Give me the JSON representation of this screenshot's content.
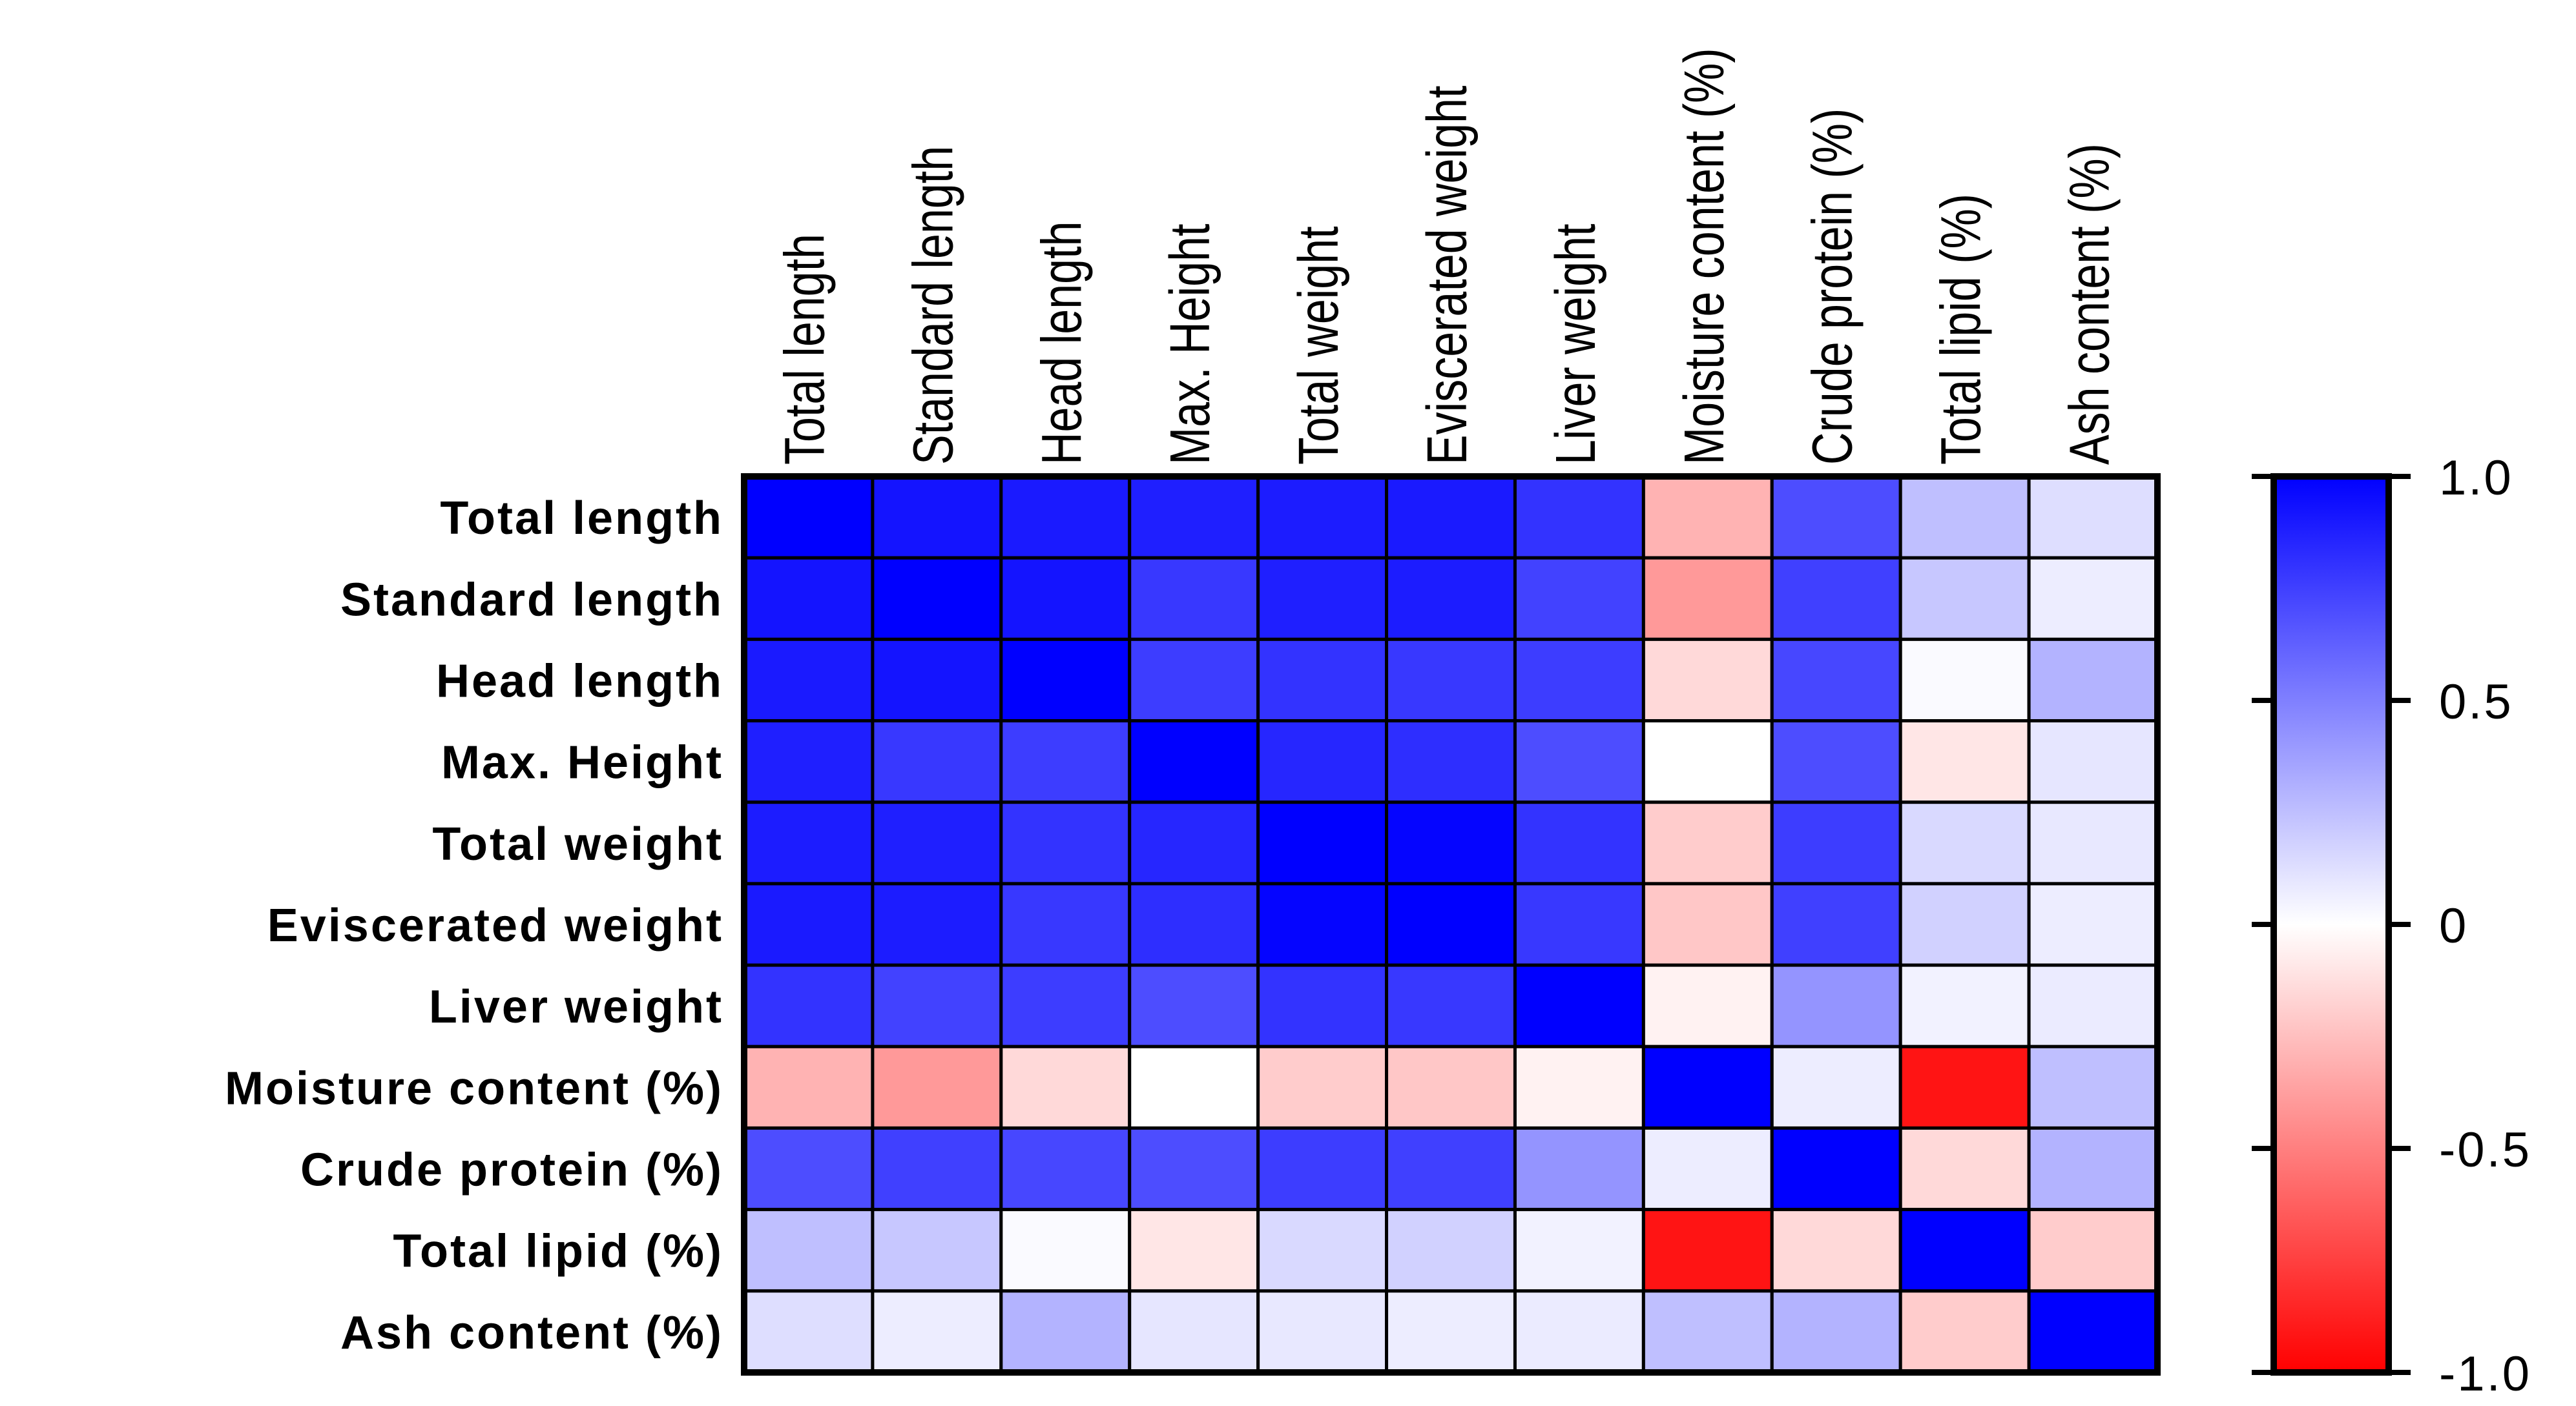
{
  "chart_data": {
    "type": "heatmap",
    "title": "",
    "row_labels": [
      "Total length",
      "Standard length",
      "Head length",
      "Max. Height",
      "Total weight",
      "Eviscerated weight",
      "Liver weight",
      "Moisture content (%)",
      "Crude protein (%)",
      "Total lipid (%)",
      "Ash content (%)"
    ],
    "column_labels": [
      "Total length",
      "Standard length",
      "Head length",
      "Max. Height",
      "Total weight",
      "Eviscerated weight",
      "Liver weight",
      "Moisture content (%)",
      "Crude protein (%)",
      "Total lipid (%)",
      "Ash content (%)"
    ],
    "values": [
      [
        1.0,
        0.92,
        0.9,
        0.88,
        0.89,
        0.9,
        0.8,
        -0.3,
        0.7,
        0.25,
        0.13
      ],
      [
        0.92,
        1.0,
        0.92,
        0.78,
        0.88,
        0.89,
        0.74,
        -0.4,
        0.75,
        0.22,
        0.07
      ],
      [
        0.9,
        0.92,
        1.0,
        0.76,
        0.8,
        0.78,
        0.76,
        -0.15,
        0.72,
        0.02,
        0.3
      ],
      [
        0.88,
        0.78,
        0.76,
        1.0,
        0.85,
        0.82,
        0.7,
        0.0,
        0.7,
        -0.1,
        0.1
      ],
      [
        0.89,
        0.88,
        0.8,
        0.85,
        1.0,
        0.98,
        0.8,
        -0.2,
        0.76,
        0.15,
        0.09
      ],
      [
        0.9,
        0.89,
        0.78,
        0.82,
        0.98,
        1.0,
        0.78,
        -0.22,
        0.75,
        0.18,
        0.07
      ],
      [
        0.8,
        0.74,
        0.76,
        0.7,
        0.8,
        0.78,
        1.0,
        -0.05,
        0.42,
        0.05,
        0.08
      ],
      [
        -0.3,
        -0.4,
        -0.15,
        0.0,
        -0.2,
        -0.22,
        -0.05,
        1.0,
        0.07,
        -0.92,
        0.25
      ],
      [
        0.7,
        0.75,
        0.72,
        0.7,
        0.76,
        0.75,
        0.42,
        0.07,
        1.0,
        -0.15,
        0.3
      ],
      [
        0.25,
        0.22,
        0.02,
        -0.1,
        0.15,
        0.18,
        0.05,
        -0.92,
        -0.15,
        1.0,
        -0.2
      ],
      [
        0.13,
        0.07,
        0.3,
        0.1,
        0.09,
        0.07,
        0.08,
        0.25,
        0.3,
        -0.2,
        1.0
      ]
    ],
    "colorscale": {
      "min": -1.0,
      "max": 1.0,
      "min_color": "#ff0000",
      "mid_color": "#ffffff",
      "max_color": "#0000ff",
      "tick_labels": [
        "1.0",
        "0.5",
        "0",
        "-0.5",
        "-1.0"
      ],
      "tick_values": [
        1.0,
        0.5,
        0,
        -0.5,
        -1.0
      ]
    }
  }
}
